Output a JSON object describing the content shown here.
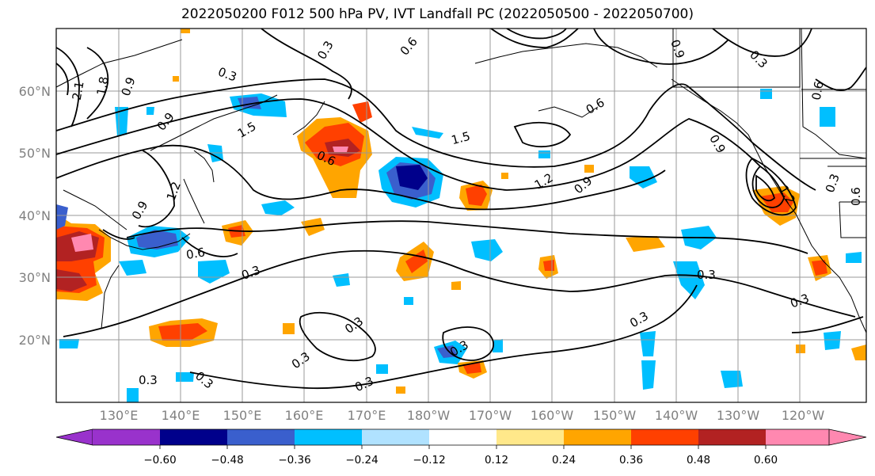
{
  "title": "2022050200 F012 500 hPa PV, IVT Landfall PC (2022050500 - 2022050700)",
  "lat_labels": [
    "60°N",
    "50°N",
    "40°N",
    "30°N",
    "20°N"
  ],
  "lon_labels": [
    "130°E",
    "140°E",
    "150°E",
    "160°E",
    "170°E",
    "180°W",
    "170°W",
    "160°W",
    "150°W",
    "140°W",
    "130°W",
    "120°W"
  ],
  "colorbar": {
    "ticks": [
      "−0.60",
      "−0.48",
      "−0.36",
      "−0.24",
      "−0.12",
      "0.12",
      "0.24",
      "0.36",
      "0.48",
      "0.60"
    ],
    "colors": [
      "#9932cc",
      "#00008b",
      "#3a5fcd",
      "#00bfff",
      "#b0e2ff",
      "#ffffff",
      "#ffe88a",
      "#ffa500",
      "#ff4000",
      "#b22222",
      "#ff88b0"
    ]
  },
  "contour_labels": {
    "l1": "0.3",
    "l2": "0.6",
    "l3": "0.9",
    "l4": "1.2",
    "l5": "1.5",
    "l6": "1.8",
    "l7": "2.1",
    "l8": "0.6",
    "l9": "0.3",
    "l10": "0.9",
    "l11": "1.2",
    "l12": "0.9",
    "l13": "0.6",
    "l14": "0.3",
    "l15": "0.3",
    "l16": "0.3",
    "l17": "0.3",
    "l18": "0.3",
    "l19": "0.3",
    "l20": "0.3",
    "l21": "0.3",
    "l22": "0.3",
    "l23": "0.6",
    "l24": "0.9",
    "l25": "0.6",
    "l26": "1.5",
    "l27": "0.9",
    "l28": "1.2",
    "l29": "0.3",
    "l30": "0.6",
    "l31": "0.3",
    "l32": "0.9",
    "l33": "0.3"
  }
}
